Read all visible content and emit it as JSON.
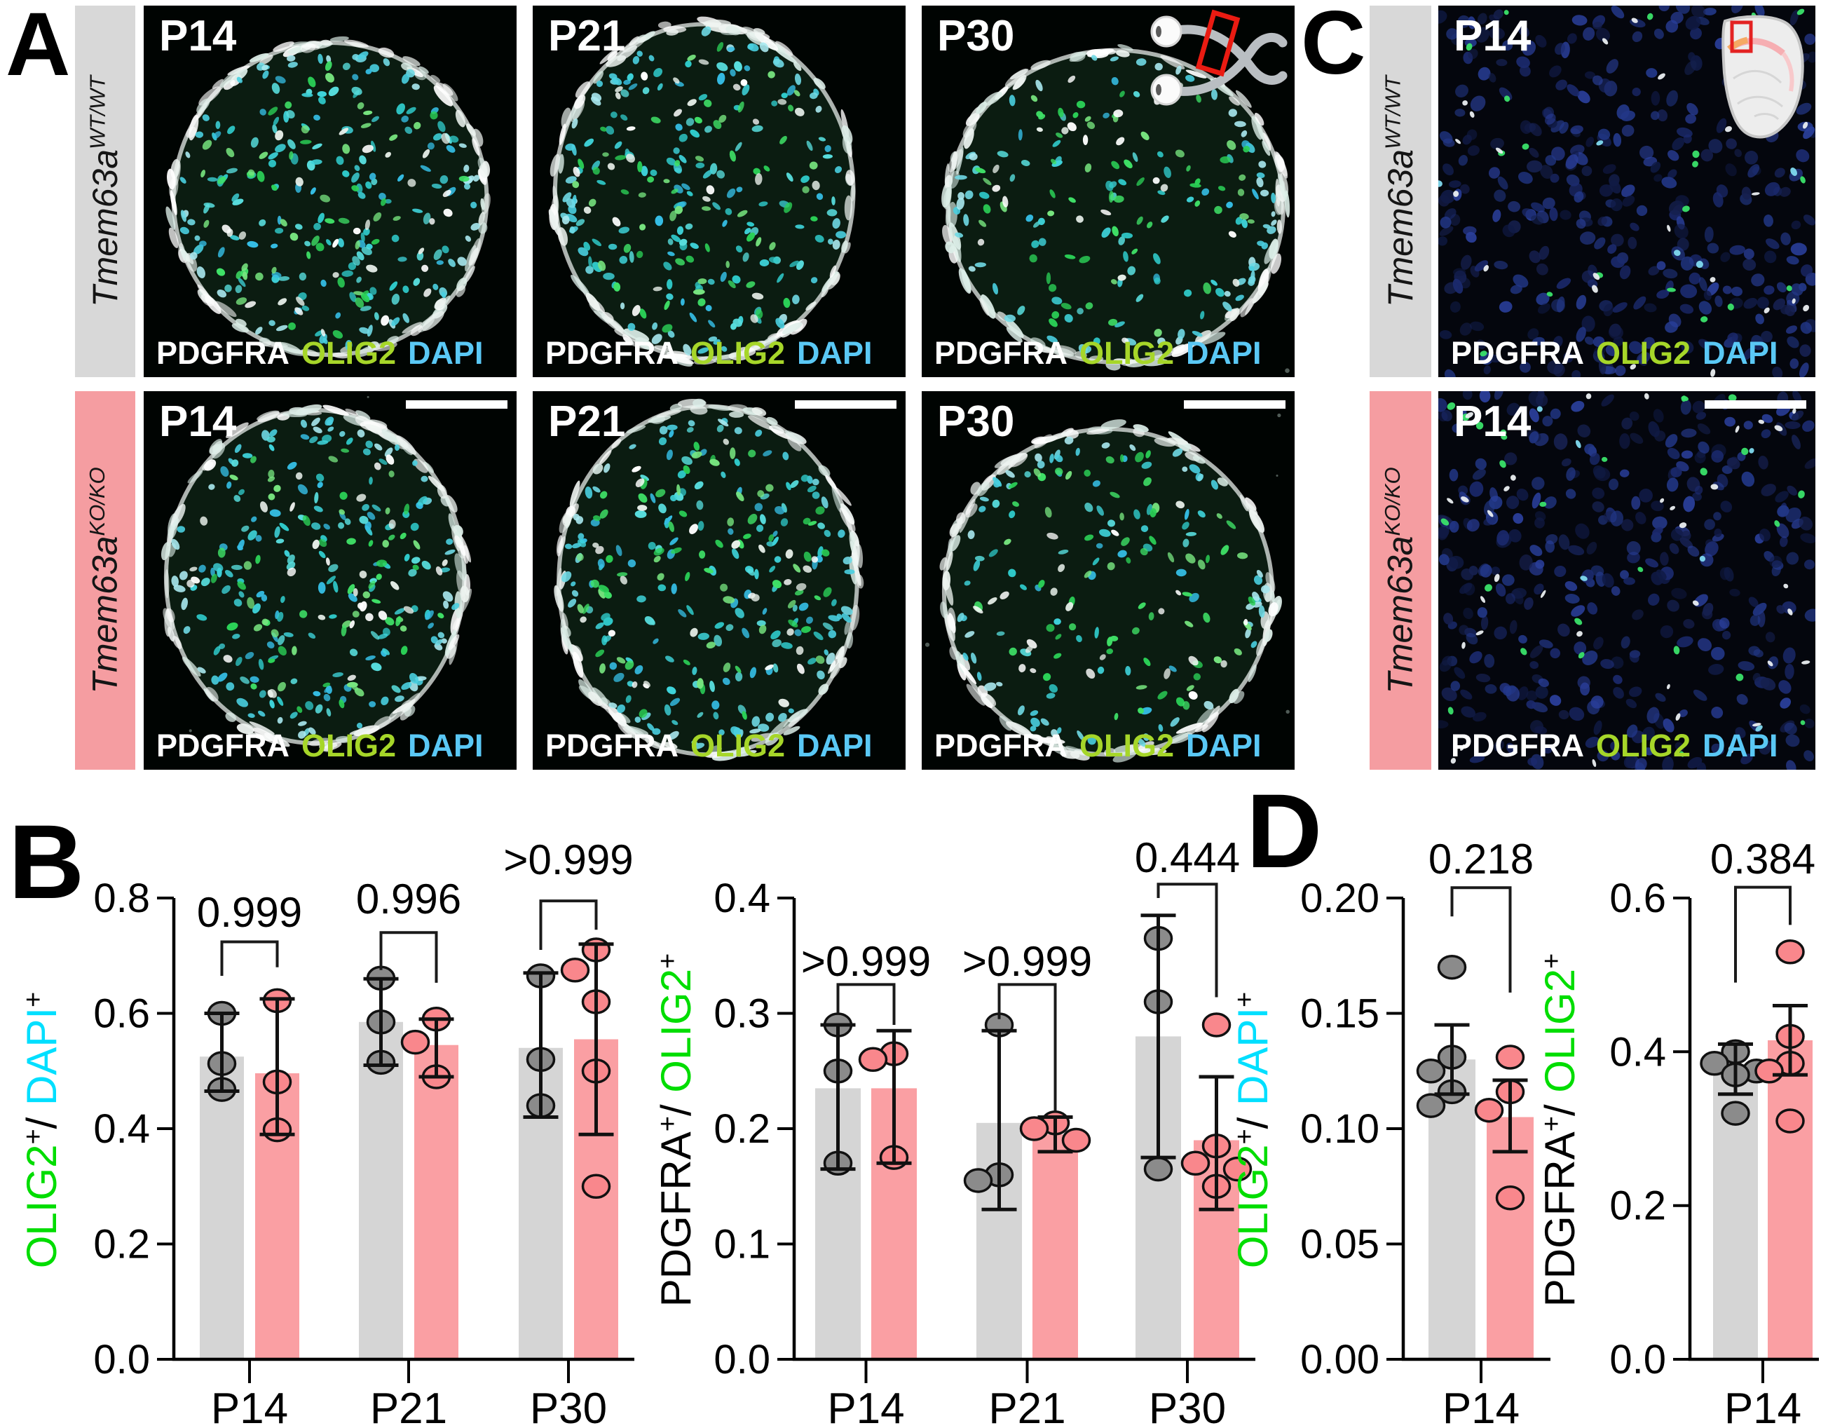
{
  "panel_labels": {
    "a": "A",
    "b": "B",
    "c": "C",
    "d": "D"
  },
  "genotypes": {
    "wt": {
      "gene": "Tmem63a",
      "allele": "WT/WT",
      "bar_color": "#d8d8d8"
    },
    "ko": {
      "gene": "Tmem63a",
      "allele": "KO/KO",
      "bar_color": "#f59da1"
    }
  },
  "markers": [
    {
      "text": "PDGFRA",
      "color": "#ffffff"
    },
    {
      "text": "OLIG2",
      "color": "#a6d629"
    },
    {
      "text": "DAPI",
      "color": "#5ac8f5"
    }
  ],
  "panel_a": {
    "rows": [
      {
        "genotype": "wt",
        "labels": [
          "P14",
          "P21",
          "P30"
        ]
      },
      {
        "genotype": "ko",
        "labels": [
          "P14",
          "P21",
          "P30"
        ]
      }
    ]
  },
  "panel_c": {
    "rows": [
      {
        "genotype": "wt",
        "label": "P14"
      },
      {
        "genotype": "ko",
        "label": "P14"
      }
    ]
  },
  "chart_data": [
    {
      "id": "b-left",
      "panel": "B",
      "type": "bar",
      "ylabel_parts": [
        {
          "text": "OLIG2",
          "color": "#00dd00"
        },
        {
          "text": "+",
          "color": "#000000",
          "sup": true
        },
        {
          "text": "/ ",
          "color": "#000000"
        },
        {
          "text": "DAPI",
          "color": "#00dfff"
        },
        {
          "text": "+",
          "color": "#000000",
          "sup": true
        }
      ],
      "ylim": [
        0,
        0.8
      ],
      "yticks": [
        "0.0",
        "0.2",
        "0.4",
        "0.6",
        "0.8"
      ],
      "categories": [
        "P14",
        "P21",
        "P30"
      ],
      "series": [
        {
          "name": "Tmem63a WT/WT",
          "bar_color": "#d5d5d5",
          "point_color": "#8b8b8b",
          "means": [
            0.525,
            0.585,
            0.54
          ],
          "sd_lo": [
            0.465,
            0.51,
            0.42
          ],
          "sd_hi": [
            0.6,
            0.66,
            0.67
          ],
          "points": [
            [
              0.6,
              0.513,
              0.468
            ],
            [
              0.661,
              0.585,
              0.515
            ],
            [
              0.665,
              0.52,
              0.44
            ]
          ]
        },
        {
          "name": "Tmem63a KO/KO",
          "bar_color": "#fa9fa3",
          "point_color": "#f9878c",
          "means": [
            0.496,
            0.545,
            0.555
          ],
          "sd_lo": [
            0.39,
            0.49,
            0.39
          ],
          "sd_hi": [
            0.625,
            0.59,
            0.72
          ],
          "points": [
            [
              0.622,
              0.481,
              0.398
            ],
            [
              0.59,
              0.55,
              0.49
            ],
            [
              0.71,
              0.675,
              0.62,
              0.5,
              0.3
            ]
          ]
        }
      ],
      "p_values": [
        "0.999",
        "0.996",
        ">0.999"
      ]
    },
    {
      "id": "b-right",
      "panel": "B",
      "type": "bar",
      "ylabel_parts": [
        {
          "text": "PDGFRA",
          "color": "#000000"
        },
        {
          "text": "+",
          "color": "#000000",
          "sup": true
        },
        {
          "text": "/ ",
          "color": "#000000"
        },
        {
          "text": "OLIG2",
          "color": "#00dd00"
        },
        {
          "text": "+",
          "color": "#000000",
          "sup": true
        }
      ],
      "ylim": [
        0,
        0.4
      ],
      "yticks": [
        "0.0",
        "0.1",
        "0.2",
        "0.3",
        "0.4"
      ],
      "categories": [
        "P14",
        "P21",
        "P30"
      ],
      "series": [
        {
          "name": "Tmem63a WT/WT",
          "bar_color": "#d5d5d5",
          "point_color": "#8b8b8b",
          "means": [
            0.235,
            0.205,
            0.28
          ],
          "sd_lo": [
            0.165,
            0.13,
            0.175
          ],
          "sd_hi": [
            0.29,
            0.285,
            0.385
          ],
          "points": [
            [
              0.29,
              0.25,
              0.17
            ],
            [
              0.29,
              0.16,
              0.155
            ],
            [
              0.365,
              0.31,
              0.165
            ]
          ]
        },
        {
          "name": "Tmem63a KO/KO",
          "bar_color": "#fa9fa3",
          "point_color": "#f9878c",
          "means": [
            0.235,
            0.195,
            0.19
          ],
          "sd_lo": [
            0.17,
            0.18,
            0.13
          ],
          "sd_hi": [
            0.285,
            0.21,
            0.245
          ],
          "points": [
            [
              0.265,
              0.26,
              0.175
            ],
            [
              0.205,
              0.2,
              0.19
            ],
            [
              0.29,
              0.185,
              0.17,
              0.165,
              0.15
            ]
          ]
        }
      ],
      "p_values": [
        ">0.999",
        ">0.999",
        "0.444"
      ]
    },
    {
      "id": "d-left",
      "panel": "D",
      "type": "bar",
      "ylabel_parts": [
        {
          "text": "OLIG2",
          "color": "#00dd00"
        },
        {
          "text": "+",
          "color": "#000000",
          "sup": true
        },
        {
          "text": "/ ",
          "color": "#000000"
        },
        {
          "text": "DAPI",
          "color": "#00dfff"
        },
        {
          "text": "+",
          "color": "#000000",
          "sup": true
        }
      ],
      "ylim": [
        0,
        0.2
      ],
      "yticks": [
        "0.00",
        "0.05",
        "0.10",
        "0.15",
        "0.20"
      ],
      "categories": [
        "P14"
      ],
      "series": [
        {
          "name": "Tmem63a WT/WT",
          "bar_color": "#d5d5d5",
          "point_color": "#8b8b8b",
          "means": [
            0.13
          ],
          "sd_lo": [
            0.115
          ],
          "sd_hi": [
            0.145
          ],
          "points": [
            [
              0.17,
              0.131,
              0.125,
              0.116,
              0.11
            ]
          ]
        },
        {
          "name": "Tmem63a KO/KO",
          "bar_color": "#fa9fa3",
          "point_color": "#f9878c",
          "means": [
            0.105
          ],
          "sd_lo": [
            0.09
          ],
          "sd_hi": [
            0.121
          ],
          "points": [
            [
              0.131,
              0.116,
              0.108,
              0.07
            ]
          ]
        }
      ],
      "p_values": [
        "0.218"
      ]
    },
    {
      "id": "d-right",
      "panel": "D",
      "type": "bar",
      "ylabel_parts": [
        {
          "text": "PDGFRA",
          "color": "#000000"
        },
        {
          "text": "+",
          "color": "#000000",
          "sup": true
        },
        {
          "text": "/ ",
          "color": "#000000"
        },
        {
          "text": "OLIG2",
          "color": "#00dd00"
        },
        {
          "text": "+",
          "color": "#000000",
          "sup": true
        }
      ],
      "ylim": [
        0,
        0.6
      ],
      "yticks": [
        "0.0",
        "0.2",
        "0.4",
        "0.6"
      ],
      "categories": [
        "P14"
      ],
      "series": [
        {
          "name": "Tmem63a WT/WT",
          "bar_color": "#d5d5d5",
          "point_color": "#8b8b8b",
          "means": [
            0.38
          ],
          "sd_lo": [
            0.345
          ],
          "sd_hi": [
            0.41
          ],
          "points": [
            [
              0.4,
              0.385,
              0.375,
              0.37,
              0.32
            ]
          ]
        },
        {
          "name": "Tmem63a KO/KO",
          "bar_color": "#fa9fa3",
          "point_color": "#f9878c",
          "means": [
            0.415
          ],
          "sd_lo": [
            0.37
          ],
          "sd_hi": [
            0.46
          ],
          "points": [
            [
              0.53,
              0.42,
              0.385,
              0.375,
              0.31
            ]
          ]
        }
      ],
      "p_values": [
        "0.384"
      ]
    }
  ]
}
